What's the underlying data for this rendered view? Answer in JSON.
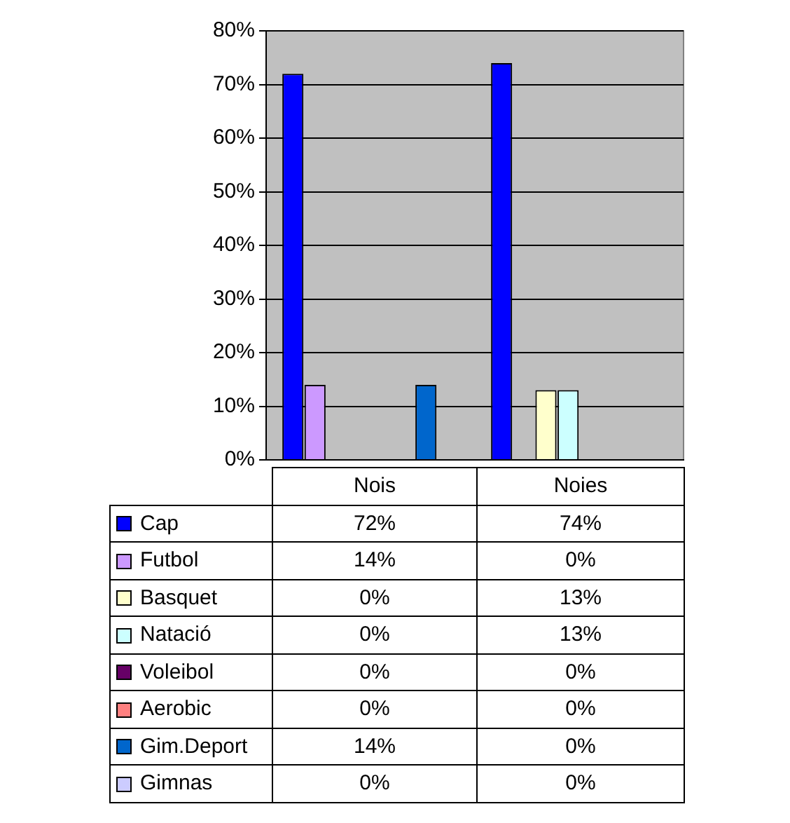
{
  "chart_data": {
    "type": "bar",
    "categories": [
      "Nois",
      "Noies"
    ],
    "series": [
      {
        "name": "Cap",
        "color": "#0000ff",
        "values": [
          72,
          74
        ],
        "value_labels": [
          "72%",
          "74%"
        ]
      },
      {
        "name": "Futbol",
        "color": "#cc99ff",
        "values": [
          14,
          0
        ],
        "value_labels": [
          "14%",
          "0%"
        ]
      },
      {
        "name": "Basquet",
        "color": "#ffffcc",
        "values": [
          0,
          13
        ],
        "value_labels": [
          "0%",
          "13%"
        ]
      },
      {
        "name": "Natació",
        "color": "#ccffff",
        "values": [
          0,
          13
        ],
        "value_labels": [
          "0%",
          "13%"
        ]
      },
      {
        "name": "Voleibol",
        "color": "#660066",
        "values": [
          0,
          0
        ],
        "value_labels": [
          "0%",
          "0%"
        ]
      },
      {
        "name": "Aerobic",
        "color": "#ff8080",
        "values": [
          0,
          0
        ],
        "value_labels": [
          "0%",
          "0%"
        ]
      },
      {
        "name": "Gim.Deport",
        "color": "#0066cc",
        "values": [
          14,
          0
        ],
        "value_labels": [
          "14%",
          "0%"
        ]
      },
      {
        "name": "Gimnas",
        "color": "#ccccff",
        "values": [
          0,
          0
        ],
        "value_labels": [
          "0%",
          "0%"
        ]
      }
    ],
    "ylim": [
      0,
      80
    ],
    "yticks": [
      {
        "value": 0,
        "label": "0%"
      },
      {
        "value": 10,
        "label": "10%"
      },
      {
        "value": 20,
        "label": "20%"
      },
      {
        "value": 30,
        "label": "30%"
      },
      {
        "value": 40,
        "label": "40%"
      },
      {
        "value": 50,
        "label": "50%"
      },
      {
        "value": 60,
        "label": "60%"
      },
      {
        "value": 70,
        "label": "70%"
      },
      {
        "value": 80,
        "label": "80%"
      }
    ],
    "grid": "y",
    "legend": "bottom"
  }
}
